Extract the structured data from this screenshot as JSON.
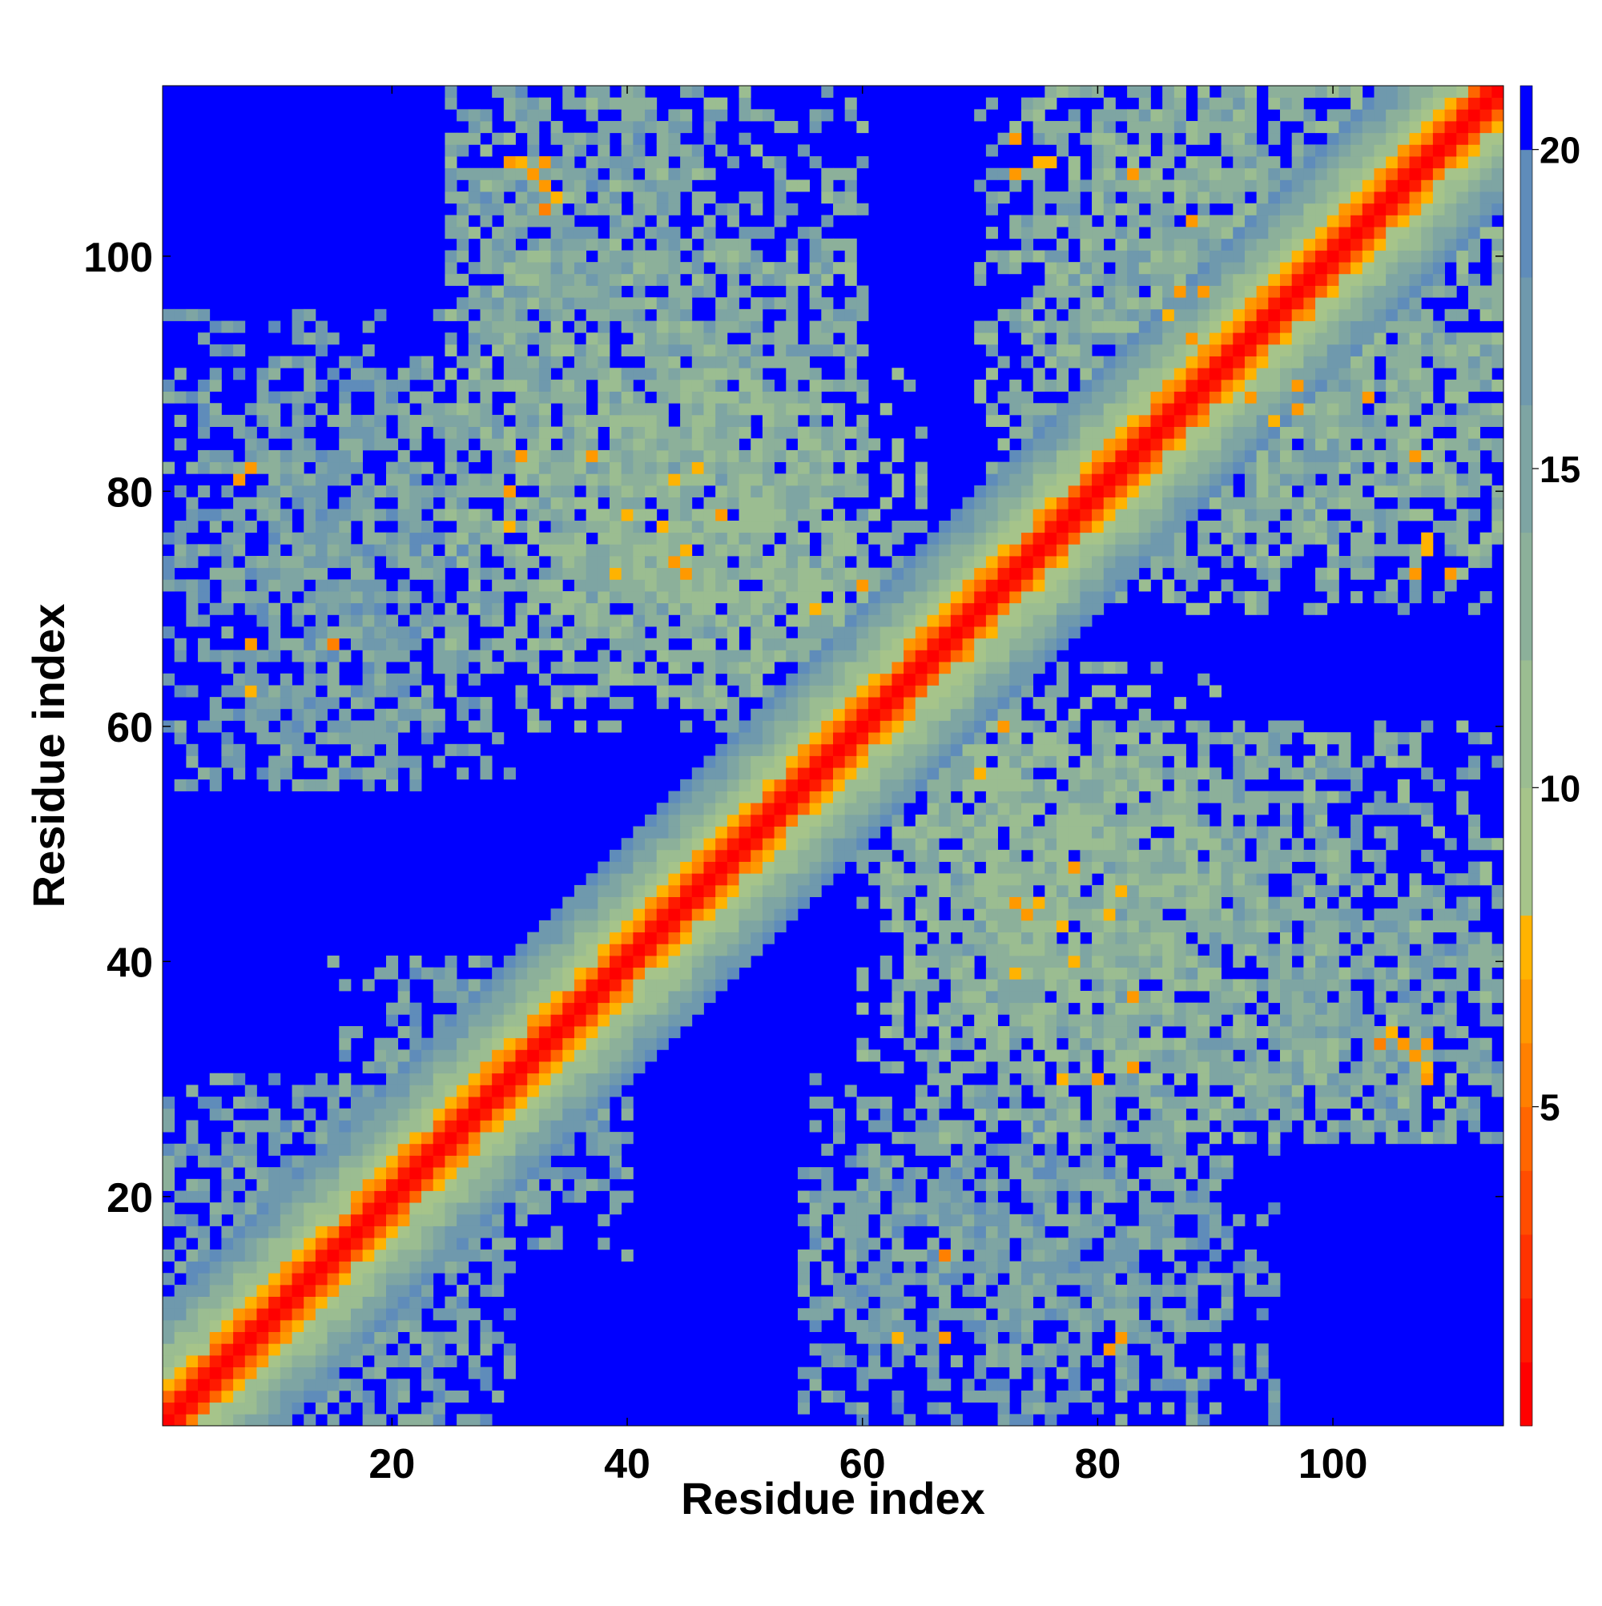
{
  "chart_data": {
    "type": "heatmap",
    "title": "",
    "xlabel": "Residue index",
    "ylabel": "Residue index",
    "xlim": [
      0.5,
      114.5
    ],
    "ylim": [
      0.5,
      114.5
    ],
    "n_residues": 114,
    "x_ticks": [
      20,
      40,
      60,
      80,
      100
    ],
    "y_ticks": [
      20,
      40,
      60,
      80,
      100
    ],
    "x_tick_labels": [
      "20",
      "40",
      "60",
      "80",
      "100"
    ],
    "y_tick_labels": [
      "20",
      "40",
      "60",
      "80",
      "100"
    ],
    "colorbar": {
      "range": [
        0,
        21
      ],
      "ticks": [
        5,
        10,
        15,
        20
      ],
      "tick_labels": [
        "5",
        "10",
        "15",
        "20"
      ],
      "bands": [
        {
          "from": 0,
          "to": 1,
          "color": "#ff0000"
        },
        {
          "from": 1,
          "to": 2,
          "color": "#ff1a00"
        },
        {
          "from": 2,
          "to": 3,
          "color": "#ff3300"
        },
        {
          "from": 3,
          "to": 4,
          "color": "#ff4d00"
        },
        {
          "from": 4,
          "to": 5,
          "color": "#ff6600"
        },
        {
          "from": 5,
          "to": 6,
          "color": "#ff8000"
        },
        {
          "from": 6,
          "to": 7,
          "color": "#ff9900"
        },
        {
          "from": 7,
          "to": 8,
          "color": "#ffb300"
        },
        {
          "from": 8,
          "to": 10,
          "color": "#a6c48a"
        },
        {
          "from": 10,
          "to": 12,
          "color": "#9bbd91"
        },
        {
          "from": 12,
          "to": 14,
          "color": "#8cb09a"
        },
        {
          "from": 14,
          "to": 16,
          "color": "#7ea5a3"
        },
        {
          "from": 16,
          "to": 18,
          "color": "#6f99ad"
        },
        {
          "from": 18,
          "to": 20,
          "color": "#5f8cba"
        },
        {
          "from": 20,
          "to": 21,
          "color": "#0000ff"
        }
      ]
    },
    "background_value": 21,
    "background_color": "#0000ff",
    "diagonal_profile": [
      {
        "offset": 0,
        "value": 0.5
      },
      {
        "offset": 1,
        "value": 1.5
      },
      {
        "offset": 2,
        "value": 5
      },
      {
        "offset": 3,
        "value": 7.5
      },
      {
        "offset": 4,
        "value": 9.5
      },
      {
        "offset": 5,
        "value": 11
      },
      {
        "offset": 6,
        "value": 12.5
      },
      {
        "offset": 7,
        "value": 14
      },
      {
        "offset": 8,
        "value": 15.5
      },
      {
        "offset": 9,
        "value": 17
      },
      {
        "offset": 10,
        "value": 18.5
      }
    ],
    "contact_regions": [
      {
        "x": [
          5,
          30
        ],
        "y": [
          55,
          90
        ],
        "value": 15.5,
        "density": 0.55
      },
      {
        "x": [
          25,
          60
        ],
        "y": [
          75,
          114
        ],
        "value": 14.5,
        "density": 0.6
      },
      {
        "x": [
          30,
          65
        ],
        "y": [
          60,
          90
        ],
        "value": 13,
        "density": 0.8
      },
      {
        "x": [
          70,
          114
        ],
        "y": [
          75,
          114
        ],
        "value": 14,
        "density": 0.75
      },
      {
        "x": [
          65,
          100
        ],
        "y": [
          25,
          60
        ],
        "value": 14,
        "density": 0.75
      },
      {
        "x": [
          85,
          114
        ],
        "y": [
          25,
          45
        ],
        "value": 15.5,
        "density": 0.7
      },
      {
        "x": [
          55,
          95
        ],
        "y": [
          1,
          25
        ],
        "value": 16,
        "density": 0.55
      },
      {
        "x": [
          1,
          30
        ],
        "y": [
          1,
          30
        ],
        "value": 16,
        "density": 0.6
      },
      {
        "x": [
          20,
          40
        ],
        "y": [
          15,
          40
        ],
        "value": 16,
        "density": 0.5
      }
    ],
    "close_contacts": [
      [
        32,
        107,
        6.5
      ],
      [
        33,
        106,
        6.5
      ],
      [
        31,
        108,
        7.5
      ],
      [
        34,
        105,
        7.5
      ],
      [
        40,
        78,
        7.5
      ],
      [
        43,
        77,
        7.5
      ],
      [
        44,
        74,
        6.5
      ],
      [
        46,
        82,
        7.5
      ],
      [
        45,
        73,
        6.5
      ],
      [
        37,
        83,
        6
      ],
      [
        39,
        73,
        7.5
      ],
      [
        30,
        77,
        7.5
      ],
      [
        8,
        82,
        6.5
      ],
      [
        15,
        67,
        5.5
      ],
      [
        8,
        67,
        6.5
      ],
      [
        76,
        108,
        7.5
      ],
      [
        73,
        107,
        6.5
      ],
      [
        87,
        97,
        6
      ],
      [
        88,
        93,
        6.5
      ],
      [
        97,
        89,
        6
      ],
      [
        95,
        86,
        7
      ],
      [
        103,
        88,
        6.5
      ],
      [
        107,
        83,
        6.5
      ],
      [
        110,
        73,
        6.5
      ],
      [
        108,
        75,
        7.5
      ],
      [
        72,
        60,
        6.5
      ],
      [
        70,
        56,
        7.5
      ],
      [
        78,
        48,
        6.5
      ],
      [
        75,
        45,
        7.5
      ],
      [
        81,
        44,
        7.5
      ],
      [
        83,
        31,
        6.5
      ],
      [
        80,
        30,
        6
      ],
      [
        77,
        30,
        7
      ],
      [
        104,
        33,
        5.5
      ],
      [
        108,
        33,
        6.5
      ],
      [
        108,
        30,
        6
      ],
      [
        67,
        15,
        5.5
      ],
      [
        81,
        7,
        6
      ],
      [
        63,
        8,
        7.5
      ]
    ]
  }
}
